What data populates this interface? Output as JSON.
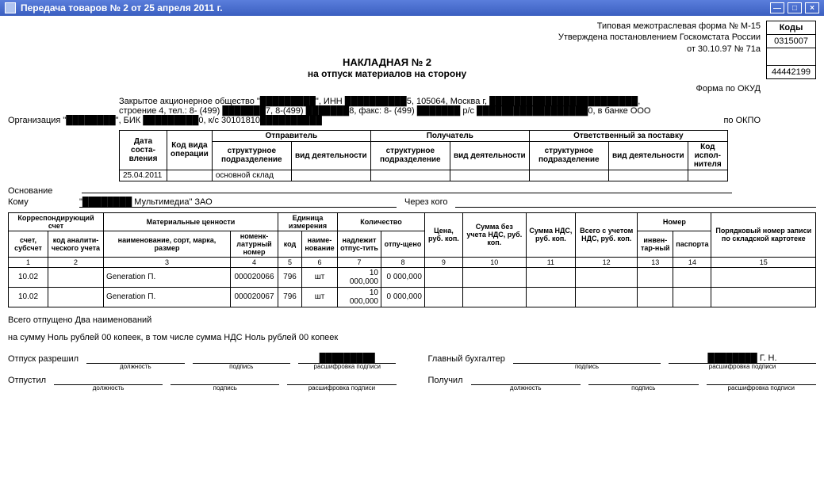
{
  "window": {
    "title": "Передача товаров № 2 от 25 апреля 2011 г."
  },
  "header": {
    "form_line1": "Типовая межотраслевая форма № М-15",
    "form_line2": "Утверждена постановлением Госкомстата России",
    "form_line3": "от 30.10.97 № 71а",
    "title": "НАКЛАДНАЯ № 2",
    "subtitle": "на отпуск материалов на сторону"
  },
  "codes": {
    "head": "Коды",
    "okud_label": "Форма по ОКУД",
    "okud": "0315007",
    "okpo_label": "по ОКПО",
    "okpo": "44442199"
  },
  "org": {
    "label": "Организация",
    "line1": "Закрытое акционерное общество \"█████████\", ИНН ██████████5, 105064, Москва г, ████████████████████████,",
    "line2": "строение 4, тел.: 8- (499) ███████7, 8-(499) ███████8, факс: 8- (499) ███████ р/с ██████████████████0, в банке ООО",
    "line3": "\"████████\", БИК █████████0, к/с 30101810██████████"
  },
  "meta_table": {
    "headers": {
      "date": "Дата соста-вления",
      "op_code": "Код вида операции",
      "sender": "Отправитель",
      "receiver": "Получатель",
      "responsible": "Ответственный за поставку",
      "struct": "структурное подразделение",
      "activity": "вид деятельности",
      "exec_code": "Код испол-нителя"
    },
    "row": {
      "date": "25.04.2011",
      "op_code": "",
      "sender_struct": "основной склад",
      "sender_act": "",
      "recv_struct": "",
      "recv_act": "",
      "resp_struct": "",
      "resp_act": "",
      "exec": ""
    }
  },
  "reason": {
    "label": "Основание",
    "value": ""
  },
  "whom": {
    "label": "Кому",
    "value": "\"████████ Мультимедиа\" ЗАО"
  },
  "via": {
    "label": "Через кого",
    "value": ""
  },
  "items": {
    "headers": {
      "corr": "Корреспондирующий счет",
      "acct": "счет, субсчет",
      "anal": "код аналити-ческого учета",
      "mat": "Материальные ценности",
      "mat_name": "наименование, сорт, марка, размер",
      "nomen": "номенк-латурный номер",
      "unit": "Единица измерения",
      "unit_code": "код",
      "unit_name": "наиме-нование",
      "qty": "Количество",
      "qty_need": "надлежит отпус-тить",
      "qty_rel": "отпу-щено",
      "price": "Цена, руб. коп.",
      "sum_no_vat": "Сумма без учета НДС, руб. коп.",
      "vat": "Сумма НДС, руб. коп.",
      "total": "Всего с учетом НДС, руб. коп.",
      "number": "Номер",
      "inv": "инвен-тар-ный",
      "pass": "паспорта",
      "seq": "Порядковый номер записи по складской картотеке"
    },
    "col_nums": [
      "1",
      "2",
      "3",
      "4",
      "5",
      "6",
      "7",
      "8",
      "9",
      "10",
      "11",
      "12",
      "13",
      "14",
      "15"
    ],
    "rows": [
      {
        "acct": "10.02",
        "anal": "",
        "name": "Generation П.",
        "nomen": "000020066",
        "ucode": "796",
        "uname": "шт",
        "qty_need": "10 000,000",
        "qty_rel": "0 000,000",
        "price": "",
        "sum": "",
        "vat": "",
        "total": "",
        "inv": "",
        "pass": "",
        "seq": ""
      },
      {
        "acct": "10.02",
        "anal": "",
        "name": "Generation П.",
        "nomen": "000020067",
        "ucode": "796",
        "uname": "шт",
        "qty_need": "10 000,000",
        "qty_rel": "0 000,000",
        "price": "",
        "sum": "",
        "vat": "",
        "total": "",
        "inv": "",
        "pass": "",
        "seq": ""
      }
    ]
  },
  "summary": {
    "released": "Всего отпущено Два  наименований",
    "amount": "на сумму Ноль рублей 00 копеек, в том числе сумма НДС Ноль рублей 00 копеек"
  },
  "sign": {
    "allowed": "Отпуск разрешил",
    "chief": "Главный бухгалтер",
    "chief_name": "████████ Г. Н.",
    "released": "Отпустил",
    "received": "Получил",
    "pos": "должность",
    "sig": "подпись",
    "decode": "расшифровка подписи"
  }
}
